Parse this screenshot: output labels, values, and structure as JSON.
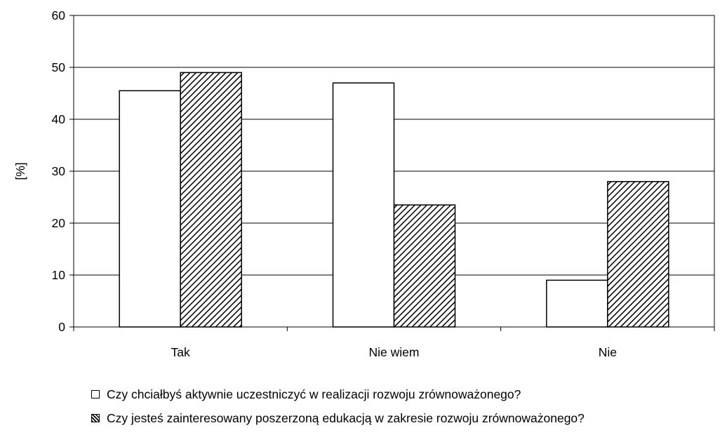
{
  "chart_data": {
    "type": "bar",
    "title": "",
    "xlabel": "",
    "ylabel": "[%]",
    "ylim": [
      0,
      60
    ],
    "yticks": [
      0,
      10,
      20,
      30,
      40,
      50,
      60
    ],
    "grid": true,
    "legend_position": "bottom",
    "categories": [
      "Tak",
      "Nie wiem",
      "Nie"
    ],
    "series": [
      {
        "name": "Czy chciałbyś aktywnie uczestniczyć w realizacji rozwoju zrównoważonego?",
        "fill": "#ffffff",
        "pattern": "none",
        "values": [
          45.5,
          47,
          9
        ]
      },
      {
        "name": "Czy jesteś zainteresowany poszerzoną edukacją w zakresie rozwoju zrównoważonego?",
        "fill": "#ffffff",
        "pattern": "diagonal-hatch",
        "values": [
          49,
          23.5,
          28
        ]
      }
    ]
  }
}
